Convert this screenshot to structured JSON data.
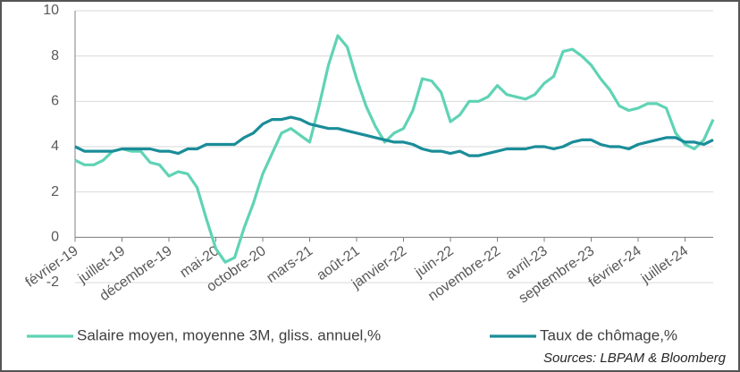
{
  "chart_data": {
    "type": "line",
    "categories": [
      "février-19",
      null,
      null,
      null,
      null,
      "juillet-19",
      null,
      null,
      null,
      null,
      "décembre-19",
      null,
      null,
      null,
      null,
      "mai-20",
      null,
      null,
      null,
      null,
      "octobre-20",
      null,
      null,
      null,
      null,
      "mars-21",
      null,
      null,
      null,
      null,
      "août-21",
      null,
      null,
      null,
      null,
      "janvier-22",
      null,
      null,
      null,
      null,
      "juin-22",
      null,
      null,
      null,
      null,
      "novembre-22",
      null,
      null,
      null,
      null,
      "avril-23",
      null,
      null,
      null,
      null,
      "septembre-23",
      null,
      null,
      null,
      null,
      "février-24",
      null,
      null,
      null,
      null,
      "juillet-24",
      null,
      null,
      null
    ],
    "series": [
      {
        "name": "Salaire moyen, moyenne 3M, gliss. annuel,%",
        "color": "#5fd3b5",
        "values": [
          3.4,
          3.2,
          3.2,
          3.4,
          3.8,
          3.9,
          3.8,
          3.8,
          3.3,
          3.2,
          2.7,
          2.9,
          2.8,
          2.2,
          0.8,
          -0.5,
          -1.1,
          -0.9,
          0.4,
          1.5,
          2.8,
          3.7,
          4.6,
          4.8,
          4.5,
          4.2,
          5.8,
          7.6,
          8.9,
          8.4,
          7.0,
          5.8,
          4.9,
          4.2,
          4.6,
          4.8,
          5.6,
          7.0,
          6.9,
          6.4,
          5.1,
          5.4,
          6.0,
          6.0,
          6.2,
          6.7,
          6.3,
          6.2,
          6.1,
          6.3,
          6.8,
          7.1,
          8.2,
          8.3,
          8.0,
          7.6,
          7.0,
          6.5,
          5.8,
          5.6,
          5.7,
          5.9,
          5.9,
          5.7,
          4.6,
          4.1,
          3.9,
          4.3,
          5.2
        ]
      },
      {
        "name": "Taux de chômage,%",
        "color": "#1a8d99",
        "values": [
          4.0,
          3.8,
          3.8,
          3.8,
          3.8,
          3.9,
          3.9,
          3.9,
          3.9,
          3.8,
          3.8,
          3.7,
          3.9,
          3.9,
          4.1,
          4.1,
          4.1,
          4.1,
          4.4,
          4.6,
          5.0,
          5.2,
          5.2,
          5.3,
          5.2,
          5.0,
          4.9,
          4.8,
          4.8,
          4.7,
          4.6,
          4.5,
          4.4,
          4.3,
          4.2,
          4.2,
          4.1,
          3.9,
          3.8,
          3.8,
          3.7,
          3.8,
          3.6,
          3.6,
          3.7,
          3.8,
          3.9,
          3.9,
          3.9,
          4.0,
          4.0,
          3.9,
          4.0,
          4.2,
          4.3,
          4.3,
          4.1,
          4.0,
          4.0,
          3.9,
          4.1,
          4.2,
          4.3,
          4.4,
          4.4,
          4.2,
          4.2,
          4.1,
          4.3
        ]
      }
    ],
    "ylim": [
      -2,
      10
    ],
    "yticks": [
      -2,
      0,
      2,
      4,
      6,
      8,
      10
    ],
    "grid": true,
    "legend": "bottom",
    "source": "Sources: LBPAM & Bloomberg"
  }
}
